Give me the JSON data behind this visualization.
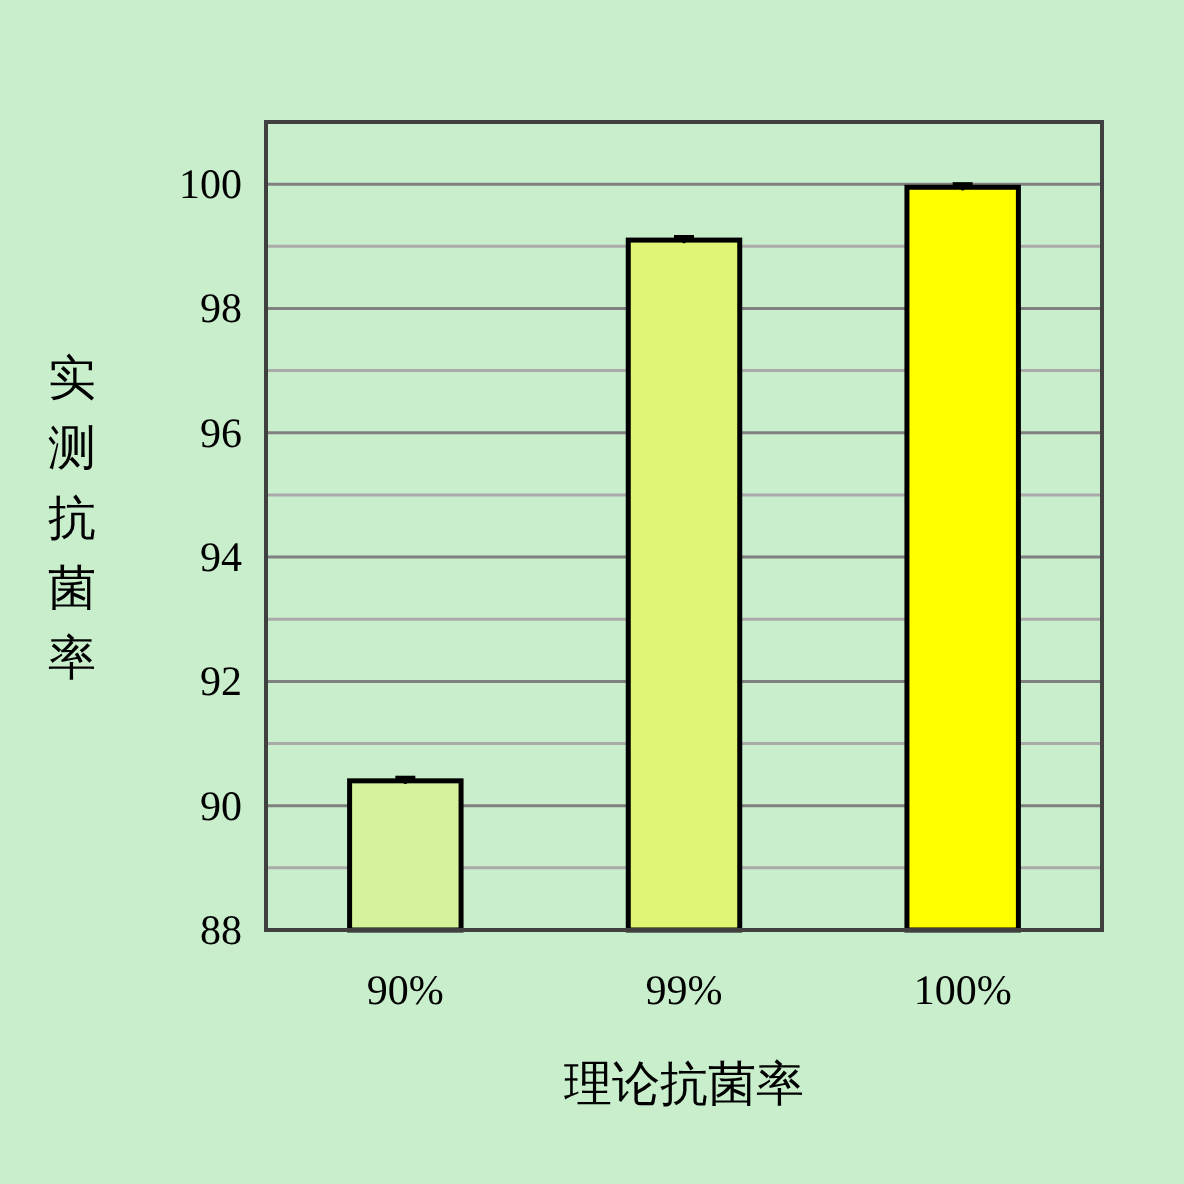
{
  "chart_data": {
    "type": "bar",
    "xlabel": "理论抗菌率",
    "ylabel": "实测抗菌率",
    "categories": [
      "90%",
      "99%",
      "100%"
    ],
    "values": [
      90.4,
      99.1,
      99.95
    ],
    "errors": [
      0.05,
      0.05,
      0.05
    ],
    "colors": [
      "#d6f29a",
      "#dff573",
      "#ffff00"
    ],
    "ylim": [
      88,
      101
    ],
    "yticks": [
      88,
      {
        "value": 89,
        "label": null
      },
      90,
      {
        "value": 91,
        "label": null
      },
      92,
      {
        "value": 93,
        "label": null
      },
      94,
      {
        "value": 95,
        "label": null
      },
      96,
      {
        "value": 97,
        "label": null
      },
      98,
      {
        "value": 99,
        "label": null
      },
      100
    ],
    "grid": "y"
  }
}
